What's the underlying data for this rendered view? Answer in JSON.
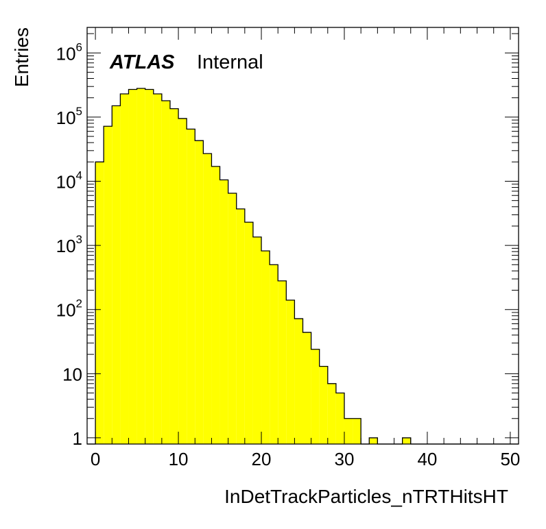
{
  "chart_data": {
    "type": "bar",
    "style": "histogram",
    "xlabel": "InDetTrackParticles_nTRTHitsHT",
    "ylabel": "Entries",
    "xlim": [
      -1,
      51
    ],
    "ylim": [
      0.8,
      2500000
    ],
    "yscale": "log",
    "grid": false,
    "fill_color": "#ffff00",
    "line_color": "#000000",
    "label": {
      "experiment": "ATLAS",
      "status": "Internal"
    },
    "x_ticks": [
      "0",
      "10",
      "20",
      "30",
      "40",
      "50"
    ],
    "y_ticks": [
      {
        "value": 1,
        "base": "1",
        "exp": ""
      },
      {
        "value": 10,
        "base": "10",
        "exp": ""
      },
      {
        "value": 100,
        "base": "10",
        "exp": "2"
      },
      {
        "value": 1000,
        "base": "10",
        "exp": "3"
      },
      {
        "value": 10000,
        "base": "10",
        "exp": "4"
      },
      {
        "value": 100000,
        "base": "10",
        "exp": "5"
      },
      {
        "value": 1000000,
        "base": "10",
        "exp": "6"
      }
    ],
    "bin_width": 1,
    "bins": [
      -1,
      0,
      1,
      2,
      3,
      4,
      5,
      6,
      7,
      8,
      9,
      10,
      11,
      12,
      13,
      14,
      15,
      16,
      17,
      18,
      19,
      20,
      21,
      22,
      23,
      24,
      25,
      26,
      27,
      28,
      29,
      30,
      31,
      32,
      33,
      34,
      35,
      36,
      37,
      38,
      39,
      40,
      41,
      42,
      43,
      44,
      45,
      46,
      47,
      48,
      49,
      50
    ],
    "values": [
      0,
      20000,
      72000,
      150000,
      230000,
      270000,
      280000,
      270000,
      230000,
      180000,
      135000,
      95000,
      65000,
      43000,
      27000,
      17000,
      10500,
      6500,
      3700,
      2300,
      1350,
      820,
      500,
      280,
      140,
      72,
      44,
      24,
      13,
      7,
      5,
      2,
      2,
      0,
      1,
      0,
      0,
      0,
      1,
      0,
      0,
      0,
      0,
      0,
      0,
      0,
      0,
      0,
      0,
      0,
      0,
      0
    ]
  }
}
